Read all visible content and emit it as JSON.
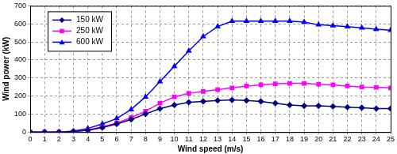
{
  "chart_data": {
    "type": "line",
    "x_label": "Wind speed (m/s)",
    "y_label": "Wind power (kW)",
    "x": [
      0,
      1,
      2,
      3,
      4,
      5,
      6,
      7,
      8,
      9,
      10,
      11,
      12,
      13,
      14,
      15,
      16,
      17,
      18,
      19,
      20,
      21,
      22,
      23,
      24,
      25
    ],
    "series": [
      {
        "name": "150 kW",
        "color": "#000080",
        "marker": "diamond",
        "values": [
          0,
          0,
          0,
          3,
          10,
          25,
          45,
          70,
          100,
          130,
          150,
          165,
          170,
          175,
          178,
          175,
          170,
          160,
          150,
          145,
          145,
          142,
          138,
          135,
          130,
          130
        ]
      },
      {
        "name": "250 kW",
        "color": "#ff00ff",
        "marker": "square",
        "values": [
          0,
          0,
          0,
          3,
          12,
          28,
          50,
          80,
          115,
          160,
          195,
          215,
          225,
          235,
          245,
          255,
          262,
          268,
          270,
          270,
          265,
          262,
          255,
          250,
          248,
          245
        ]
      },
      {
        "name": "600 kW",
        "color": "#0000ff",
        "marker": "triangle",
        "values": [
          0,
          0,
          0,
          5,
          20,
          45,
          75,
          125,
          195,
          280,
          365,
          450,
          530,
          585,
          615,
          615,
          615,
          615,
          615,
          610,
          595,
          590,
          585,
          578,
          570,
          565
        ]
      }
    ],
    "xlim": [
      0,
      25
    ],
    "xticks": [
      0,
      1,
      2,
      3,
      4,
      5,
      6,
      7,
      8,
      9,
      10,
      11,
      12,
      13,
      14,
      15,
      16,
      17,
      18,
      19,
      20,
      21,
      22,
      23,
      24,
      25
    ],
    "ylim": [
      0,
      700
    ],
    "yticks": [
      0,
      100,
      200,
      300,
      400,
      500,
      600,
      700
    ],
    "grid": true,
    "legend": "upper left"
  }
}
